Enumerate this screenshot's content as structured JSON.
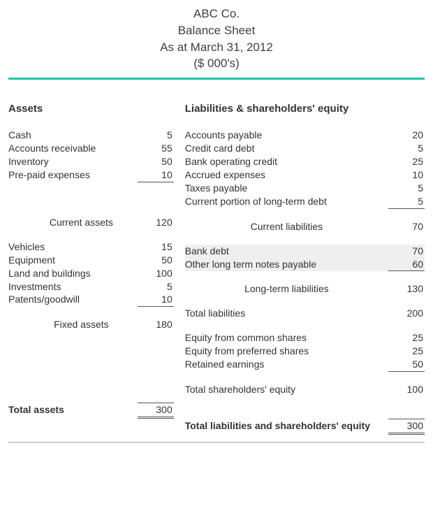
{
  "header": {
    "company": "ABC Co.",
    "title": "Balance Sheet",
    "asat": "As at March 31, 2012",
    "units": "($ 000's)"
  },
  "style": {
    "top_rule_color": "#1cc6a2"
  },
  "assets": {
    "heading": "Assets",
    "current_items": [
      {
        "label": "Cash",
        "value": "5"
      },
      {
        "label": "Accounts receivable",
        "value": "55"
      },
      {
        "label": "Inventory",
        "value": "50"
      },
      {
        "label": "Pre-paid expenses",
        "value": "10"
      }
    ],
    "current_subtotal": {
      "label": "Current assets",
      "value": "120"
    },
    "fixed_items": [
      {
        "label": "Vehicles",
        "value": "15"
      },
      {
        "label": "Equipment",
        "value": "50"
      },
      {
        "label": "Land and buildings",
        "value": "100"
      },
      {
        "label": "Investments",
        "value": "5"
      },
      {
        "label": "Patents/goodwill",
        "value": "10"
      }
    ],
    "fixed_subtotal": {
      "label": "Fixed assets",
      "value": "180"
    },
    "total": {
      "label": "Total assets",
      "value": "300"
    }
  },
  "liab": {
    "heading": "Liabilities & shareholders' equity",
    "current_items": [
      {
        "label": "Accounts payable",
        "value": "20"
      },
      {
        "label": "Credit card debt",
        "value": "5"
      },
      {
        "label": "Bank operating credit",
        "value": "25"
      },
      {
        "label": "Accrued expenses",
        "value": "10"
      },
      {
        "label": "Taxes payable",
        "value": "5"
      },
      {
        "label": "Current portion of long-term debt",
        "value": "5"
      }
    ],
    "current_subtotal": {
      "label": "Current liabilities",
      "value": "70"
    },
    "lt_items": [
      {
        "label": "Bank debt",
        "value": "70"
      },
      {
        "label": "Other long term notes payable",
        "value": "60"
      }
    ],
    "lt_subtotal": {
      "label": "Long-term liabilities",
      "value": "130"
    },
    "total_liabilities": {
      "label": "Total liabilities",
      "value": "200"
    },
    "equity_items": [
      {
        "label": "Equity from common shares",
        "value": "25"
      },
      {
        "label": "Equity from preferred shares",
        "value": "25"
      },
      {
        "label": "Retained earnings",
        "value": "50"
      }
    ],
    "total_equity": {
      "label": "Total shareholders' equity",
      "value": "100"
    },
    "grand_total": {
      "label": "Total liabilities and shareholders' equity",
      "value": "300"
    }
  }
}
